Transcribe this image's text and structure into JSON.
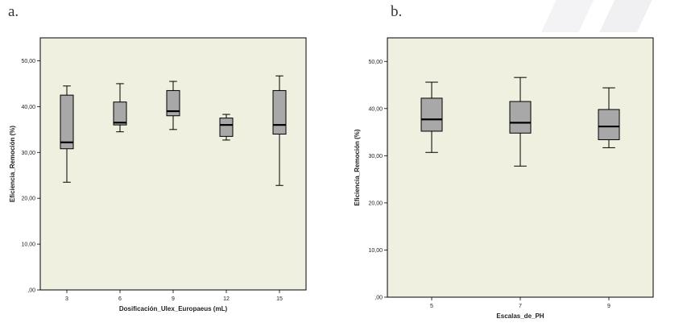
{
  "panels": [
    {
      "letter": "a."
    },
    {
      "letter": "b."
    }
  ],
  "chart_data": [
    {
      "type": "box",
      "title": "",
      "xlabel": "Dosificación_Ulex_Europaeus (mL)",
      "ylabel": "Eficiencia_Remoción (%)",
      "ylim": [
        0,
        55
      ],
      "yticks": [
        0,
        10,
        20,
        30,
        40,
        50
      ],
      "ytick_labels": [
        ",00",
        "10,00",
        "20,00",
        "30,00",
        "40,00",
        "50,00"
      ],
      "categories": [
        "3",
        "6",
        "9",
        "12",
        "15"
      ],
      "boxes": [
        {
          "min": 23.5,
          "q1": 30.8,
          "median": 32.2,
          "q3": 42.5,
          "max": 44.5
        },
        {
          "min": 34.5,
          "q1": 36.0,
          "median": 36.5,
          "q3": 41.0,
          "max": 45.0
        },
        {
          "min": 35.0,
          "q1": 38.0,
          "median": 39.0,
          "q3": 43.5,
          "max": 45.5
        },
        {
          "min": 32.7,
          "q1": 33.5,
          "median": 36.0,
          "q3": 37.5,
          "max": 38.3
        },
        {
          "min": 22.8,
          "q1": 34.0,
          "median": 36.0,
          "q3": 43.5,
          "max": 46.7
        }
      ]
    },
    {
      "type": "box",
      "title": "",
      "xlabel": "Escalas_de_PH",
      "ylabel": "Eficiencia_Remoción (%)",
      "ylim": [
        0,
        55
      ],
      "yticks": [
        0,
        10,
        20,
        30,
        40,
        50
      ],
      "ytick_labels": [
        ",00",
        "10,00",
        "20,00",
        "30,00",
        "40,00",
        "50,00"
      ],
      "categories": [
        "5",
        "7",
        "9"
      ],
      "boxes": [
        {
          "min": 30.7,
          "q1": 35.2,
          "median": 37.7,
          "q3": 42.2,
          "max": 45.6
        },
        {
          "min": 27.8,
          "q1": 34.8,
          "median": 37.0,
          "q3": 41.5,
          "max": 46.6
        },
        {
          "min": 31.7,
          "q1": 33.4,
          "median": 36.2,
          "q3": 39.8,
          "max": 44.4
        }
      ]
    }
  ]
}
